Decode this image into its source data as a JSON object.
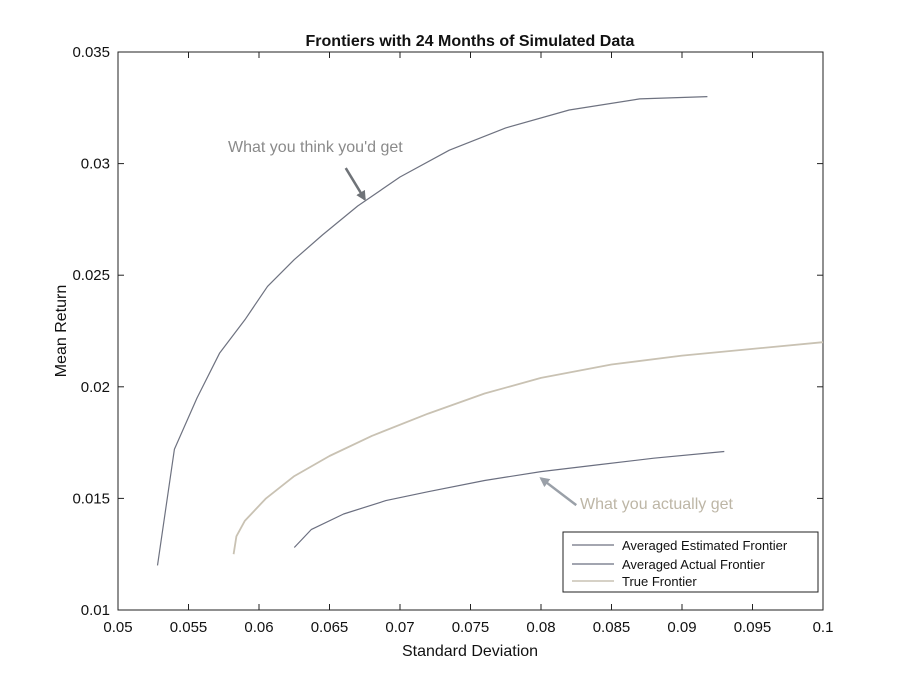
{
  "chart_data": {
    "type": "line",
    "title": "Frontiers with 24 Months of Simulated Data",
    "xlabel": "Standard Deviation",
    "ylabel": "Mean Return",
    "xlim": [
      0.05,
      0.1
    ],
    "ylim": [
      0.01,
      0.035
    ],
    "xticks": [
      "0.05",
      "0.055",
      "0.06",
      "0.065",
      "0.07",
      "0.075",
      "0.08",
      "0.085",
      "0.09",
      "0.095",
      "0.1"
    ],
    "yticks": [
      "0.01",
      "0.015",
      "0.02",
      "0.025",
      "0.03",
      "0.035"
    ],
    "grid": false,
    "legend_position": "lower-right",
    "series": [
      {
        "name": "Averaged Estimated Frontier",
        "color": "#6e7280",
        "x": [
          0.0528,
          0.054,
          0.0556,
          0.0572,
          0.059,
          0.0606,
          0.0625,
          0.0645,
          0.067,
          0.07,
          0.0735,
          0.0775,
          0.082,
          0.087,
          0.0918
        ],
        "y": [
          0.012,
          0.0172,
          0.0195,
          0.0215,
          0.023,
          0.0245,
          0.0257,
          0.0268,
          0.0281,
          0.0294,
          0.0306,
          0.0316,
          0.0324,
          0.0329,
          0.033
        ]
      },
      {
        "name": "Averaged Actual Frontier",
        "color": "#6b6f80",
        "x": [
          0.0625,
          0.0637,
          0.066,
          0.069,
          0.072,
          0.076,
          0.08,
          0.084,
          0.088,
          0.093
        ],
        "y": [
          0.0128,
          0.0136,
          0.0143,
          0.0149,
          0.0153,
          0.0158,
          0.0162,
          0.0165,
          0.0168,
          0.0171
        ]
      },
      {
        "name": "True Frontier",
        "color": "#c9c2b3",
        "x": [
          0.0582,
          0.0584,
          0.059,
          0.0605,
          0.0625,
          0.065,
          0.068,
          0.072,
          0.076,
          0.08,
          0.085,
          0.09,
          0.095,
          0.1
        ],
        "y": [
          0.0125,
          0.0133,
          0.014,
          0.015,
          0.016,
          0.0169,
          0.0178,
          0.0188,
          0.0197,
          0.0204,
          0.021,
          0.0214,
          0.0217,
          0.022
        ]
      }
    ],
    "annotations": [
      {
        "text": "What you think you'd get",
        "color": "#8a8a8a",
        "arrow_from": [
          0.0665,
          0.0305
        ],
        "arrow_to": [
          0.0675,
          0.0284
        ]
      },
      {
        "text": "What you actually get",
        "color": "#bdb6a6",
        "arrow_from": [
          0.0825,
          0.0147
        ],
        "arrow_to": [
          0.08,
          0.0159
        ]
      }
    ]
  }
}
